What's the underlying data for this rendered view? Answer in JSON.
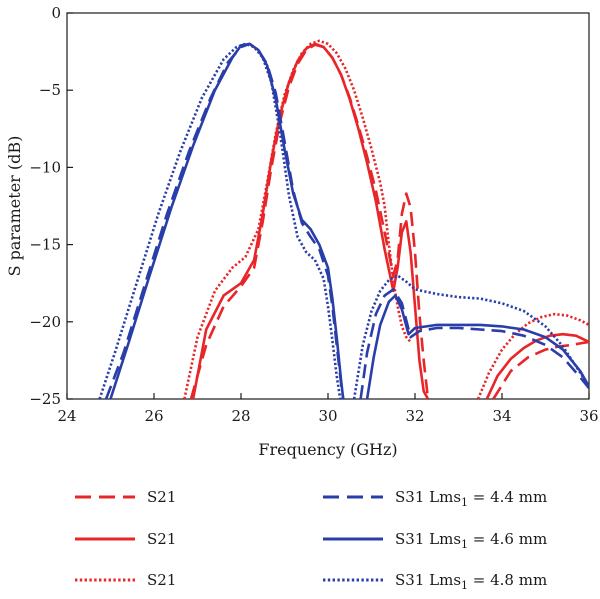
{
  "chart_data": {
    "type": "line",
    "title": "",
    "xlabel": "Frequency (GHz)",
    "ylabel": "S parameter (dB)",
    "xlim": [
      24,
      36
    ],
    "ylim": [
      -25,
      0
    ],
    "xticks": [
      24,
      26,
      28,
      30,
      32,
      34,
      36
    ],
    "yticks": [
      0,
      -5,
      -10,
      -15,
      -20,
      -25
    ],
    "grid": false,
    "legend_position": "bottom",
    "colors": {
      "red": "#e8262a",
      "blue": "#2a3eaa",
      "axis": "#1a1a1a"
    },
    "series": [
      {
        "name": "S21",
        "color": "#e8262a",
        "dash": "dashed",
        "x": [
          26.85,
          27.2,
          27.6,
          28.0,
          28.3,
          28.5,
          28.7,
          28.9,
          29.1,
          29.3,
          29.5,
          29.7,
          29.9,
          30.1,
          30.3,
          30.5,
          30.7,
          30.9,
          31.1,
          31.3,
          31.5,
          31.6,
          31.7,
          31.8,
          31.9,
          32.0,
          32.1,
          32.2,
          32.3
        ],
        "y": [
          -25,
          -21.5,
          -19,
          -17.7,
          -16.5,
          -13.5,
          -10,
          -7,
          -4.8,
          -3.3,
          -2.4,
          -2.05,
          -2.2,
          -2.9,
          -4.0,
          -5.5,
          -7.3,
          -9.3,
          -11.5,
          -14.2,
          -17.0,
          -16.0,
          -13.0,
          -11.7,
          -12.6,
          -15.5,
          -19.5,
          -22.5,
          -25
        ]
      },
      {
        "name": "S21",
        "color": "#e8262a",
        "dash": "solid",
        "x": [
          26.9,
          27.2,
          27.6,
          28.0,
          28.3,
          28.5,
          28.7,
          28.9,
          29.1,
          29.3,
          29.5,
          29.7,
          29.9,
          30.1,
          30.3,
          30.5,
          30.7,
          30.9,
          31.1,
          31.3,
          31.5,
          31.6,
          31.7,
          31.8,
          31.9,
          32.0,
          32.1,
          32.2,
          32.3
        ],
        "y": [
          -25,
          -20.5,
          -18.3,
          -17.5,
          -16.0,
          -13.0,
          -9.5,
          -6.6,
          -4.5,
          -3.1,
          -2.3,
          -2.0,
          -2.2,
          -2.9,
          -4.0,
          -5.6,
          -7.5,
          -9.7,
          -12.2,
          -15.3,
          -18.0,
          -16.5,
          -14.2,
          -13.5,
          -15.5,
          -19.0,
          -22.5,
          -24.5,
          -25
        ]
      },
      {
        "name": "S21",
        "color": "#e8262a",
        "dash": "dotted",
        "x": [
          26.7,
          27.0,
          27.4,
          27.8,
          28.1,
          28.4,
          28.6,
          28.8,
          29.0,
          29.2,
          29.4,
          29.6,
          29.8,
          30.0,
          30.2,
          30.4,
          30.6,
          30.8,
          31.0,
          31.2,
          31.3,
          31.4,
          31.5,
          31.6,
          31.7,
          31.8,
          31.9
        ],
        "y": [
          -25,
          -21.0,
          -18.0,
          -16.5,
          -15.8,
          -14.0,
          -11.0,
          -7.8,
          -5.3,
          -3.7,
          -2.6,
          -2.0,
          -1.8,
          -2.0,
          -2.6,
          -3.6,
          -5.0,
          -6.8,
          -8.8,
          -11.0,
          -12.5,
          -15.0,
          -17.3,
          -19.0,
          -20.3,
          -21.0,
          -21.3
        ]
      },
      {
        "name": "S31 Lms₁ = 4.4 mm",
        "color": "#2a3eaa",
        "dash": "dashed",
        "x": [
          24.9,
          25.3,
          25.8,
          26.3,
          26.8,
          27.3,
          27.7,
          28.0,
          28.2,
          28.4,
          28.6,
          28.8,
          29.0,
          29.2,
          29.4,
          29.6,
          29.8,
          30.0,
          30.1,
          30.2,
          30.3,
          30.35
        ],
        "y": [
          -25,
          -22.0,
          -17.5,
          -13.0,
          -9.0,
          -5.5,
          -3.2,
          -2.2,
          -2.0,
          -2.4,
          -3.3,
          -5.2,
          -8.3,
          -11.5,
          -13.6,
          -14.5,
          -15.3,
          -17.0,
          -19.0,
          -21.5,
          -24.0,
          -25
        ]
      },
      {
        "name": "S31 Lms₁ = 4.6 mm",
        "color": "#2a3eaa",
        "dash": "solid",
        "x": [
          25.0,
          25.4,
          25.9,
          26.4,
          26.9,
          27.4,
          27.8,
          28.0,
          28.2,
          28.4,
          28.6,
          28.8,
          29.0,
          29.2,
          29.4,
          29.6,
          29.8,
          30.0,
          30.1,
          30.2,
          30.3,
          30.35
        ],
        "y": [
          -25,
          -21.5,
          -17.0,
          -12.6,
          -8.6,
          -5.0,
          -2.9,
          -2.1,
          -2.0,
          -2.4,
          -3.4,
          -5.6,
          -8.8,
          -11.7,
          -13.4,
          -14.0,
          -15.0,
          -16.5,
          -18.5,
          -21.0,
          -23.8,
          -25
        ]
      },
      {
        "name": "S31 Lms₁ = 4.8 mm",
        "color": "#2a3eaa",
        "dash": "dotted",
        "x": [
          24.75,
          25.1,
          25.6,
          26.1,
          26.6,
          27.1,
          27.6,
          27.9,
          28.1,
          28.3,
          28.5,
          28.7,
          28.9,
          29.1,
          29.3,
          29.5,
          29.7,
          29.9,
          30.0,
          30.1,
          30.2,
          30.28
        ],
        "y": [
          -25,
          -22.0,
          -17.5,
          -13.0,
          -9.0,
          -5.5,
          -3.0,
          -2.2,
          -2.0,
          -2.2,
          -2.9,
          -4.5,
          -7.8,
          -11.8,
          -14.5,
          -15.5,
          -16.0,
          -17.2,
          -19.0,
          -21.2,
          -23.5,
          -25
        ]
      },
      {
        "name": "",
        "color": "#e8262a",
        "dash": "dashed",
        "x": [
          33.8,
          34.2,
          34.6,
          35.0,
          35.3,
          35.6,
          35.8,
          36.0
        ],
        "y": [
          -25,
          -23.2,
          -22.3,
          -21.8,
          -21.6,
          -21.5,
          -21.4,
          -21.3
        ]
      },
      {
        "name": "",
        "color": "#e8262a",
        "dash": "solid",
        "x": [
          33.65,
          33.9,
          34.2,
          34.5,
          34.8,
          35.1,
          35.4,
          35.7,
          36.0
        ],
        "y": [
          -25,
          -23.5,
          -22.4,
          -21.7,
          -21.2,
          -20.9,
          -20.8,
          -20.9,
          -21.3
        ]
      },
      {
        "name": "",
        "color": "#e8262a",
        "dash": "dotted",
        "x": [
          33.45,
          33.7,
          34.0,
          34.3,
          34.6,
          34.9,
          35.2,
          35.5,
          35.8,
          36.0
        ],
        "y": [
          -25,
          -23.3,
          -21.8,
          -20.8,
          -20.1,
          -19.7,
          -19.5,
          -19.6,
          -19.9,
          -20.2
        ]
      },
      {
        "name": "",
        "color": "#2a3eaa",
        "dash": "dashed",
        "x": [
          30.75,
          30.9,
          31.1,
          31.3,
          31.5,
          31.7,
          31.9,
          32.1,
          32.5,
          33.0,
          33.5,
          34.0,
          34.5,
          35.0,
          35.4,
          35.8,
          36.0
        ],
        "y": [
          -25,
          -22.0,
          -19.5,
          -18.3,
          -17.9,
          -18.8,
          -21.0,
          -20.6,
          -20.4,
          -20.4,
          -20.5,
          -20.6,
          -20.9,
          -21.5,
          -22.3,
          -23.6,
          -24.3
        ]
      },
      {
        "name": "",
        "color": "#2a3eaa",
        "dash": "solid",
        "x": [
          30.9,
          31.05,
          31.2,
          31.4,
          31.55,
          31.7,
          31.85,
          32.0,
          32.5,
          33.0,
          33.5,
          34.0,
          34.5,
          35.0,
          35.4,
          35.8,
          36.0
        ],
        "y": [
          -25,
          -22.3,
          -20.2,
          -18.7,
          -18.3,
          -19.2,
          -20.8,
          -20.4,
          -20.2,
          -20.2,
          -20.2,
          -20.3,
          -20.5,
          -21.0,
          -21.8,
          -23.2,
          -24.2
        ]
      },
      {
        "name": "",
        "color": "#2a3eaa",
        "dash": "dotted",
        "x": [
          30.6,
          30.8,
          31.0,
          31.2,
          31.4,
          31.6,
          31.8,
          32.0,
          32.5,
          33.0,
          33.5,
          34.0,
          34.5,
          35.0,
          35.4,
          35.8,
          36.0
        ],
        "y": [
          -25,
          -21.5,
          -19.3,
          -18.0,
          -17.3,
          -17.0,
          -17.4,
          -17.9,
          -18.2,
          -18.4,
          -18.5,
          -18.8,
          -19.3,
          -20.3,
          -21.6,
          -23.3,
          -24.2
        ]
      }
    ],
    "legend": [
      {
        "label": "S21",
        "sub": "",
        "suffix": "",
        "color": "#e8262a",
        "dash": "dashed"
      },
      {
        "label": "S31 Lms",
        "sub": "1",
        "suffix": " = 4.4 mm",
        "color": "#2a3eaa",
        "dash": "dashed"
      },
      {
        "label": "S21",
        "sub": "",
        "suffix": "",
        "color": "#e8262a",
        "dash": "solid"
      },
      {
        "label": "S31 Lms",
        "sub": "1",
        "suffix": " = 4.6 mm",
        "color": "#2a3eaa",
        "dash": "solid"
      },
      {
        "label": "S21",
        "sub": "",
        "suffix": "",
        "color": "#e8262a",
        "dash": "dotted"
      },
      {
        "label": "S31 Lms",
        "sub": "1",
        "suffix": " = 4.8 mm",
        "color": "#2a3eaa",
        "dash": "dotted"
      }
    ]
  }
}
